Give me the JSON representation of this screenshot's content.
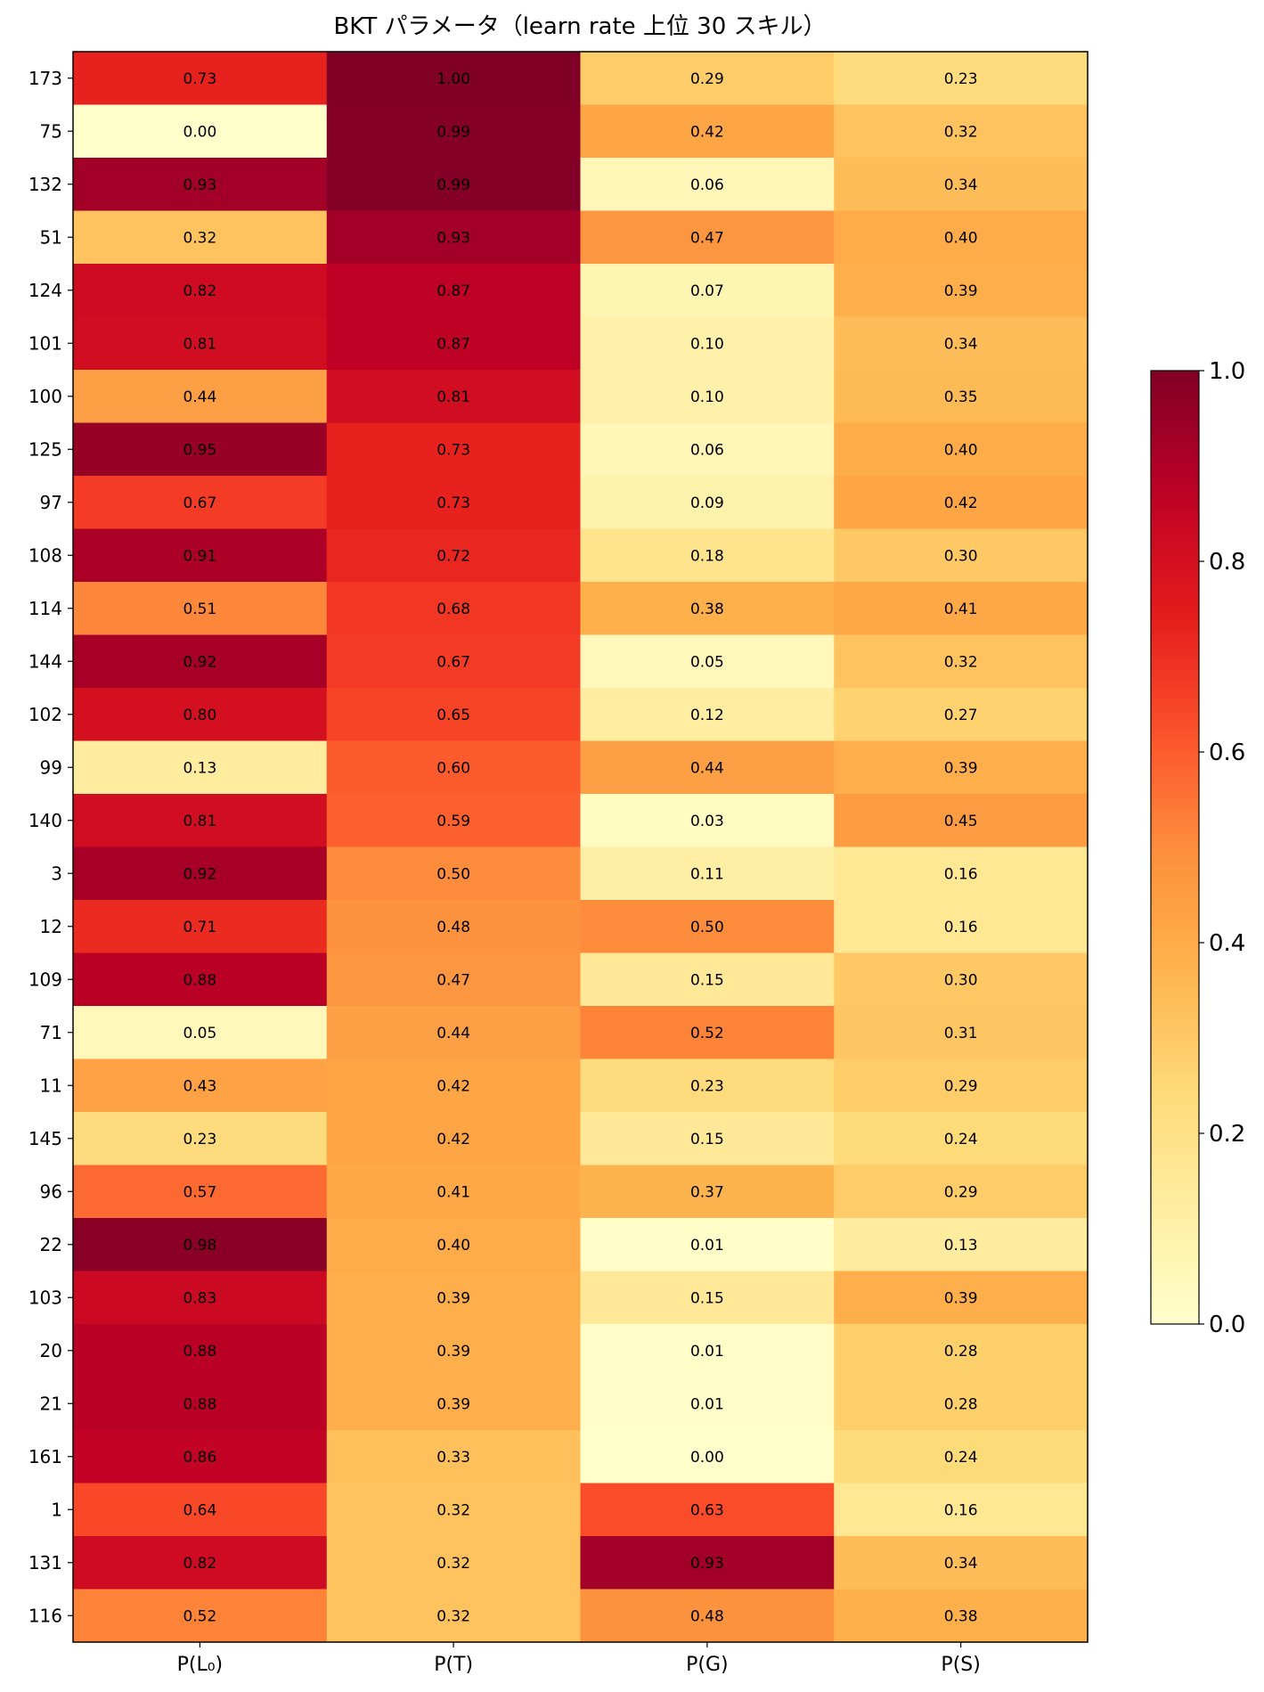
{
  "chart_data": {
    "type": "heatmap",
    "title": "BKT パラメータ（learn rate 上位 30 スキル）",
    "columns": [
      "P(L₀)",
      "P(T)",
      "P(G)",
      "P(S)"
    ],
    "rows": [
      "173",
      "75",
      "132",
      "51",
      "124",
      "101",
      "100",
      "125",
      "97",
      "108",
      "114",
      "144",
      "102",
      "99",
      "140",
      "3",
      "12",
      "109",
      "71",
      "11",
      "145",
      "96",
      "22",
      "103",
      "20",
      "21",
      "161",
      "1",
      "131",
      "116"
    ],
    "values": [
      [
        0.73,
        1.0,
        0.29,
        0.23
      ],
      [
        0.0,
        0.99,
        0.42,
        0.32
      ],
      [
        0.93,
        0.99,
        0.06,
        0.34
      ],
      [
        0.32,
        0.93,
        0.47,
        0.4
      ],
      [
        0.82,
        0.87,
        0.07,
        0.39
      ],
      [
        0.81,
        0.87,
        0.1,
        0.34
      ],
      [
        0.44,
        0.81,
        0.1,
        0.35
      ],
      [
        0.95,
        0.73,
        0.06,
        0.4
      ],
      [
        0.67,
        0.73,
        0.09,
        0.42
      ],
      [
        0.91,
        0.72,
        0.18,
        0.3
      ],
      [
        0.51,
        0.68,
        0.38,
        0.41
      ],
      [
        0.92,
        0.67,
        0.05,
        0.32
      ],
      [
        0.8,
        0.65,
        0.12,
        0.27
      ],
      [
        0.13,
        0.6,
        0.44,
        0.39
      ],
      [
        0.81,
        0.59,
        0.03,
        0.45
      ],
      [
        0.92,
        0.5,
        0.11,
        0.16
      ],
      [
        0.71,
        0.48,
        0.5,
        0.16
      ],
      [
        0.88,
        0.47,
        0.15,
        0.3
      ],
      [
        0.05,
        0.44,
        0.52,
        0.31
      ],
      [
        0.43,
        0.42,
        0.23,
        0.29
      ],
      [
        0.23,
        0.42,
        0.15,
        0.24
      ],
      [
        0.57,
        0.41,
        0.37,
        0.29
      ],
      [
        0.98,
        0.4,
        0.01,
        0.13
      ],
      [
        0.83,
        0.39,
        0.15,
        0.39
      ],
      [
        0.88,
        0.39,
        0.01,
        0.28
      ],
      [
        0.88,
        0.39,
        0.01,
        0.28
      ],
      [
        0.86,
        0.33,
        0.0,
        0.24
      ],
      [
        0.64,
        0.32,
        0.63,
        0.16
      ],
      [
        0.82,
        0.32,
        0.93,
        0.34
      ],
      [
        0.52,
        0.32,
        0.48,
        0.38
      ]
    ],
    "colormap": "YlOrRd",
    "vmin": 0,
    "vmax": 1,
    "colorbar_ticks": [
      "0.0",
      "0.2",
      "0.4",
      "0.6",
      "0.8",
      "1.0"
    ]
  }
}
